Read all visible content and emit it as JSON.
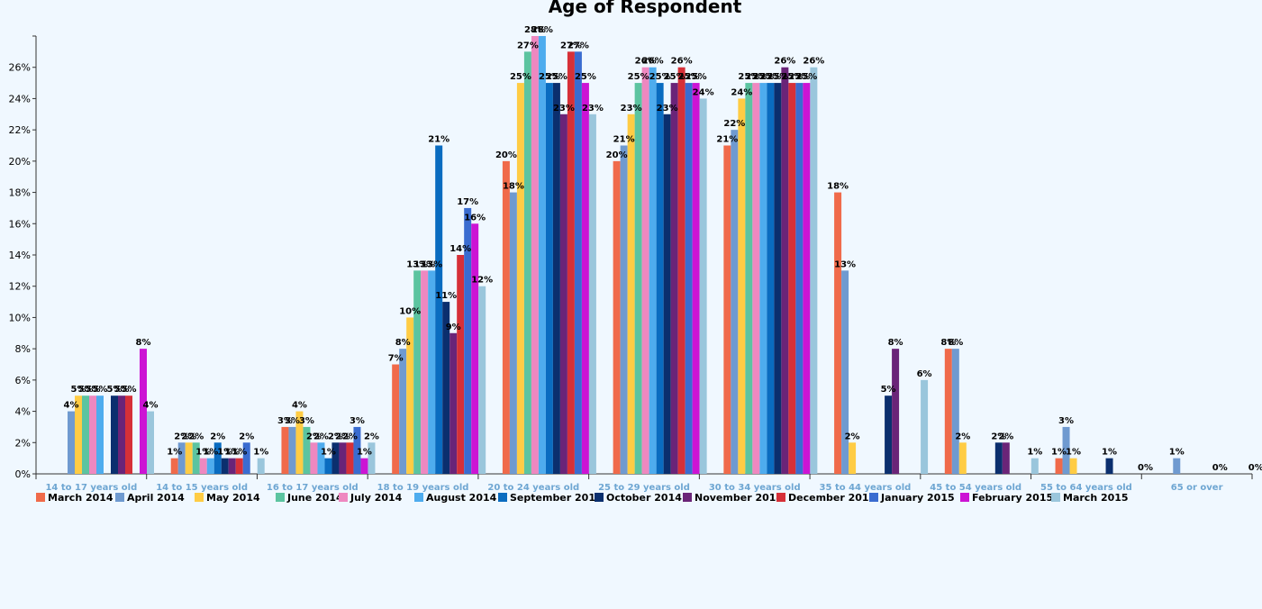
{
  "chart_data": {
    "type": "bar",
    "title": "Age of Respondent",
    "xlabel": "",
    "ylabel": "",
    "ylim": [
      0,
      28
    ],
    "yticks": [
      0,
      2,
      4,
      6,
      8,
      10,
      12,
      14,
      16,
      18,
      20,
      22,
      24,
      26
    ],
    "ytick_suffix": "%",
    "legend_position": "bottom-left",
    "grid": false,
    "categories": [
      "14 to 17 years old",
      "14 to 15 years old",
      "16 to 17 years old",
      "18 to 19 years old",
      "20 to 24 years old",
      "25 to 29 years old",
      "30 to 34 years old",
      "35 to 44 years old",
      "45 to 54 years old",
      "55 to 64 years old",
      "65 or over"
    ],
    "series": [
      {
        "name": "March 2014",
        "color": "#f06a4a",
        "values": [
          null,
          1,
          3,
          7,
          20,
          20,
          21,
          18,
          8,
          1,
          null
        ]
      },
      {
        "name": "April 2014",
        "color": "#6f9ad0",
        "values": [
          4,
          2,
          3,
          8,
          18,
          21,
          22,
          13,
          8,
          3,
          1
        ]
      },
      {
        "name": "May 2014",
        "color": "#ffcc44",
        "values": [
          5,
          2,
          4,
          10,
          25,
          23,
          24,
          2,
          2,
          1,
          null
        ]
      },
      {
        "name": "June 2014",
        "color": "#5cc4a0",
        "values": [
          5,
          2,
          3,
          13,
          27,
          25,
          25,
          null,
          null,
          null,
          null
        ]
      },
      {
        "name": "July 2014",
        "color": "#ee88c0",
        "values": [
          5,
          1,
          2,
          13,
          28,
          26,
          25,
          null,
          null,
          null,
          null
        ]
      },
      {
        "name": "August 2014",
        "color": "#4eacee",
        "values": [
          5,
          1,
          2,
          13,
          28,
          26,
          25,
          null,
          null,
          null,
          null
        ]
      },
      {
        "name": "September 2014",
        "color": "#0a6cc0",
        "values": [
          null,
          2,
          1,
          21,
          25,
          25,
          25,
          null,
          null,
          null,
          null
        ]
      },
      {
        "name": "October 2014",
        "color": "#0b2f6e",
        "values": [
          5,
          1,
          2,
          11,
          25,
          23,
          25,
          5,
          2,
          1,
          0
        ]
      },
      {
        "name": "November 2014",
        "color": "#6a2478",
        "values": [
          5,
          1,
          2,
          9,
          23,
          25,
          26,
          8,
          2,
          null,
          null
        ]
      },
      {
        "name": "December 2014",
        "color": "#d63038",
        "values": [
          5,
          1,
          2,
          14,
          27,
          26,
          25,
          null,
          null,
          null,
          null
        ]
      },
      {
        "name": "January 2015",
        "color": "#3a6cd0",
        "values": [
          null,
          2,
          3,
          17,
          27,
          25,
          25,
          null,
          null,
          null,
          null
        ]
      },
      {
        "name": "February 2015",
        "color": "#cc14d4",
        "values": [
          8,
          null,
          1,
          16,
          25,
          25,
          25,
          null,
          null,
          null,
          null
        ]
      },
      {
        "name": "March 2015",
        "color": "#9ac6dc",
        "values": [
          4,
          1,
          2,
          12,
          23,
          24,
          26,
          6,
          1,
          0,
          0
        ]
      }
    ]
  }
}
